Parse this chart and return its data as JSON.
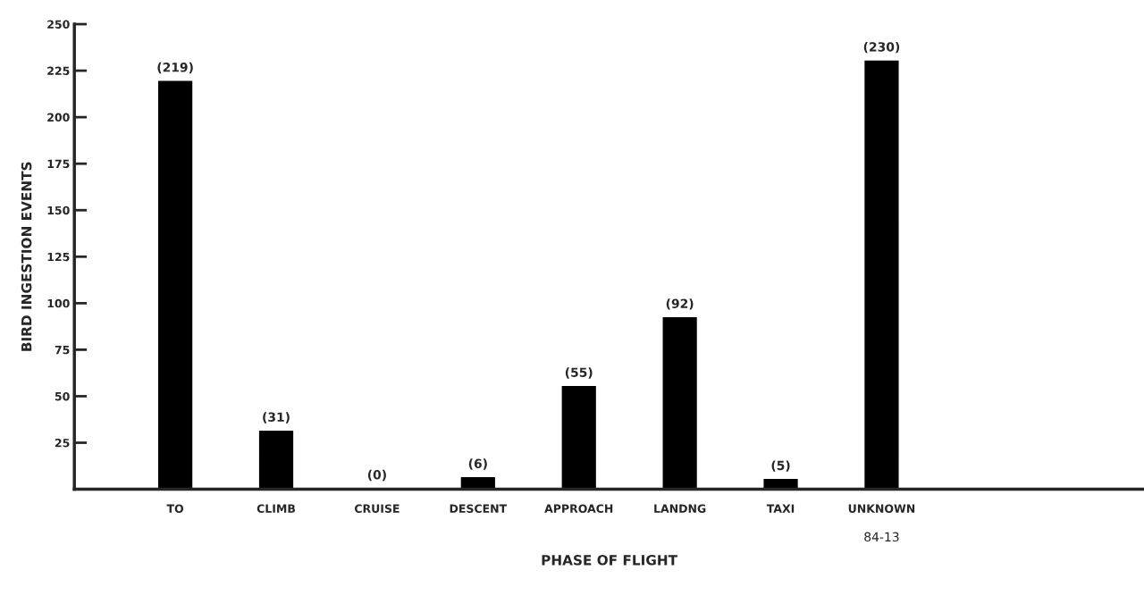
{
  "chart_data": {
    "type": "bar",
    "xlabel": "PHASE OF FLIGHT",
    "ylabel": "BIRD INGESTION EVENTS",
    "categories": [
      "TO",
      "CLIMB",
      "CRUISE",
      "DESCENT",
      "APPROACH",
      "LANDNG",
      "TAXI",
      "UNKNOWN"
    ],
    "values": [
      219,
      31,
      0,
      6,
      55,
      92,
      5,
      230
    ],
    "value_labels": [
      "(219)",
      "(31)",
      "(0)",
      "(6)",
      "(55)",
      "(92)",
      "(5)",
      "(230)"
    ],
    "color": "#000000",
    "ylim": [
      0,
      250
    ],
    "yticks": [
      25,
      50,
      75,
      100,
      125,
      150,
      175,
      200,
      225,
      250
    ],
    "grid": false,
    "annotations": [
      "84-13"
    ]
  }
}
